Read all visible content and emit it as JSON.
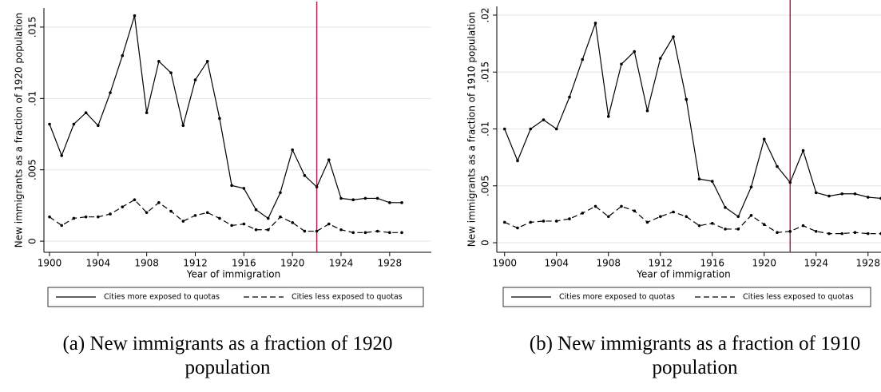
{
  "chart_data": [
    {
      "type": "line",
      "caption": "(a) New immigrants as a fraction of 1920 population",
      "xlabel": "Year of immigration",
      "ylabel": "New immigrants as a fraction of 1920 population",
      "x": [
        1900,
        1901,
        1902,
        1903,
        1904,
        1905,
        1906,
        1907,
        1908,
        1909,
        1910,
        1911,
        1912,
        1913,
        1914,
        1915,
        1916,
        1917,
        1918,
        1919,
        1920,
        1921,
        1922,
        1923,
        1924,
        1925,
        1926,
        1927,
        1928,
        1929
      ],
      "series": [
        {
          "name": "Cities more exposed to quotas",
          "color": "#000000",
          "dash": "solid",
          "values": [
            0.0082,
            0.006,
            0.0082,
            0.009,
            0.0081,
            0.0104,
            0.013,
            0.0158,
            0.009,
            0.0126,
            0.0118,
            0.0081,
            0.0113,
            0.0126,
            0.0086,
            0.0039,
            0.0037,
            0.0022,
            0.0016,
            0.0034,
            0.0064,
            0.0046,
            0.0038,
            0.0057,
            0.003,
            0.0029,
            0.003,
            0.003,
            0.0027,
            0.0027
          ]
        },
        {
          "name": "Cities less exposed to quotas",
          "color": "#000000",
          "dash": "dashed",
          "values": [
            0.0017,
            0.0011,
            0.0016,
            0.0017,
            0.0017,
            0.0019,
            0.0024,
            0.0029,
            0.002,
            0.0027,
            0.0021,
            0.0014,
            0.0018,
            0.002,
            0.0016,
            0.0011,
            0.0012,
            0.0008,
            0.0008,
            0.0017,
            0.0013,
            0.0007,
            0.0007,
            0.0012,
            0.0008,
            0.0006,
            0.0006,
            0.0007,
            0.0006,
            0.0006
          ]
        }
      ],
      "xlim": [
        1899.54,
        1931.43
      ],
      "xticks": [
        1900,
        1904,
        1908,
        1912,
        1916,
        1920,
        1924,
        1928
      ],
      "ylim": [
        -0.00078,
        0.01634
      ],
      "yticks": [
        0,
        {
          "value": 0.005,
          "label": ".005"
        },
        {
          "value": 0.01,
          "label": ".01"
        },
        {
          "value": 0.015,
          "label": ".015"
        }
      ],
      "grid": true,
      "vline": 1922,
      "vline_color": "#a8245c",
      "legend": "bottom"
    },
    {
      "type": "line",
      "caption": "(b) New immigrants as a fraction of 1910 population",
      "xlabel": "Year of immigration",
      "ylabel": "New immigrants as a fraction of 1910 population",
      "x": [
        1900,
        1901,
        1902,
        1903,
        1904,
        1905,
        1906,
        1907,
        1908,
        1909,
        1910,
        1911,
        1912,
        1913,
        1914,
        1915,
        1916,
        1917,
        1918,
        1919,
        1920,
        1921,
        1922,
        1923,
        1924,
        1925,
        1926,
        1927,
        1928,
        1929
      ],
      "series": [
        {
          "name": "Cities more exposed to quotas",
          "color": "#000000",
          "dash": "solid",
          "values": [
            0.01,
            0.0072,
            0.01,
            0.0108,
            0.01,
            0.0128,
            0.0161,
            0.0193,
            0.0111,
            0.0157,
            0.0168,
            0.0116,
            0.0162,
            0.0181,
            0.0126,
            0.0056,
            0.0054,
            0.0031,
            0.0023,
            0.0049,
            0.0091,
            0.0067,
            0.0053,
            0.0081,
            0.0044,
            0.0041,
            0.0043,
            0.0043,
            0.004,
            0.0039
          ]
        },
        {
          "name": "Cities less exposed to quotas",
          "color": "#000000",
          "dash": "dashed",
          "values": [
            0.0018,
            0.0013,
            0.0018,
            0.0019,
            0.0019,
            0.0021,
            0.0026,
            0.0032,
            0.0023,
            0.0032,
            0.0028,
            0.0018,
            0.0023,
            0.0027,
            0.0023,
            0.0015,
            0.0017,
            0.0012,
            0.0012,
            0.0024,
            0.0016,
            0.0009,
            0.001,
            0.0015,
            0.001,
            0.0008,
            0.0008,
            0.0009,
            0.0008,
            0.0008
          ]
        }
      ],
      "xlim": [
        1899.4,
        1929
      ],
      "xticks": [
        1900,
        1904,
        1908,
        1912,
        1916,
        1920,
        1924,
        1928
      ],
      "ylim": [
        -0.00084,
        0.02077
      ],
      "yticks": [
        0,
        {
          "value": 0.005,
          "label": ".005"
        },
        {
          "value": 0.01,
          "label": ".01"
        },
        {
          "value": 0.015,
          "label": ".015"
        },
        {
          "value": 0.02,
          "label": ".02"
        }
      ],
      "grid": true,
      "vline": 1922,
      "vline_color": "#a8245c",
      "legend": "bottom"
    }
  ]
}
